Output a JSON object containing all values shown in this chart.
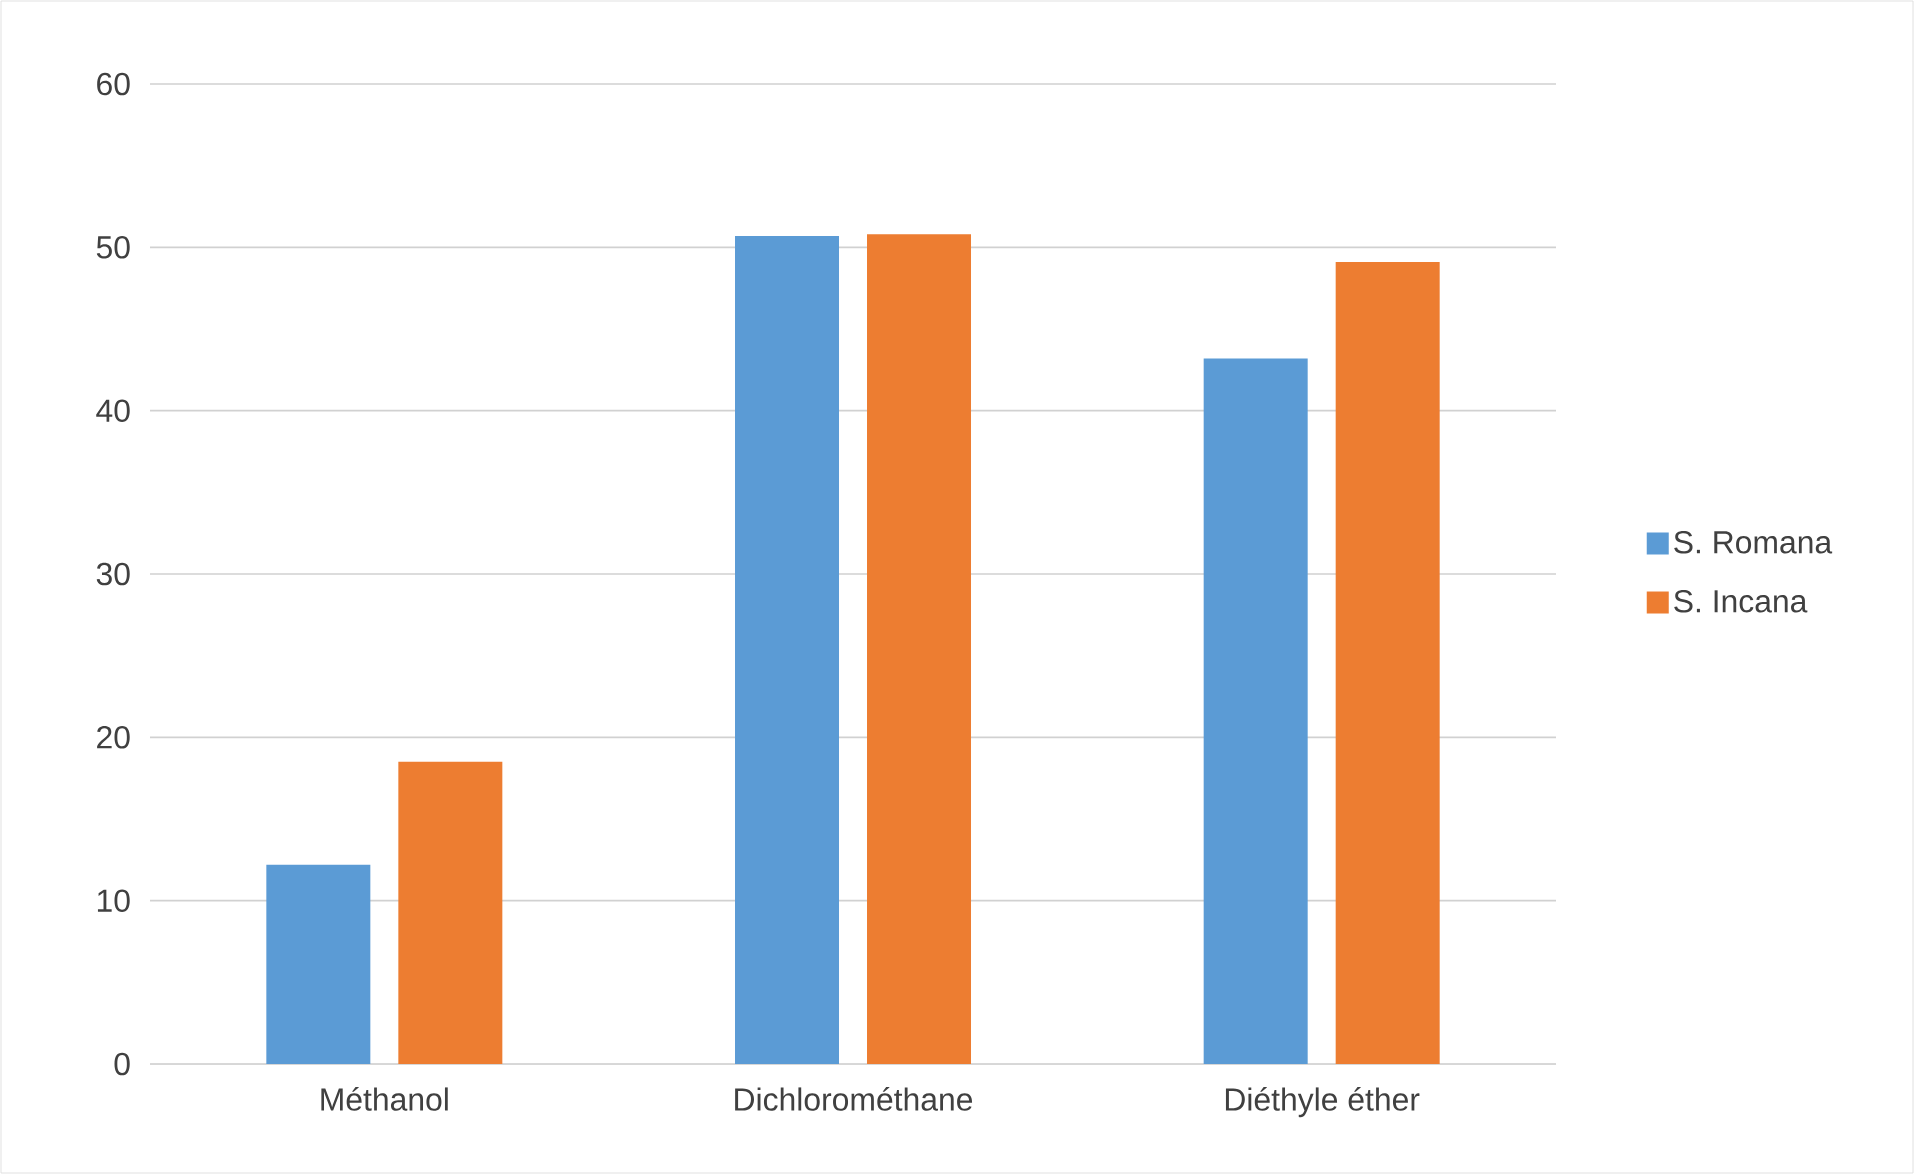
{
  "chart_data": {
    "type": "bar",
    "categories": [
      "Méthanol",
      "Dichlorométhane",
      "Diéthyle éther"
    ],
    "series": [
      {
        "name": "S. Romana",
        "color": "#5b9bd5",
        "values": [
          12.2,
          50.7,
          43.2
        ]
      },
      {
        "name": "S. Incana",
        "color": "#ed7d31",
        "values": [
          18.5,
          50.8,
          49.1
        ]
      }
    ],
    "ylim": [
      0,
      60
    ],
    "yticks": [
      0,
      10,
      20,
      30,
      40,
      50,
      60
    ],
    "grid": "y",
    "legend": "right"
  }
}
